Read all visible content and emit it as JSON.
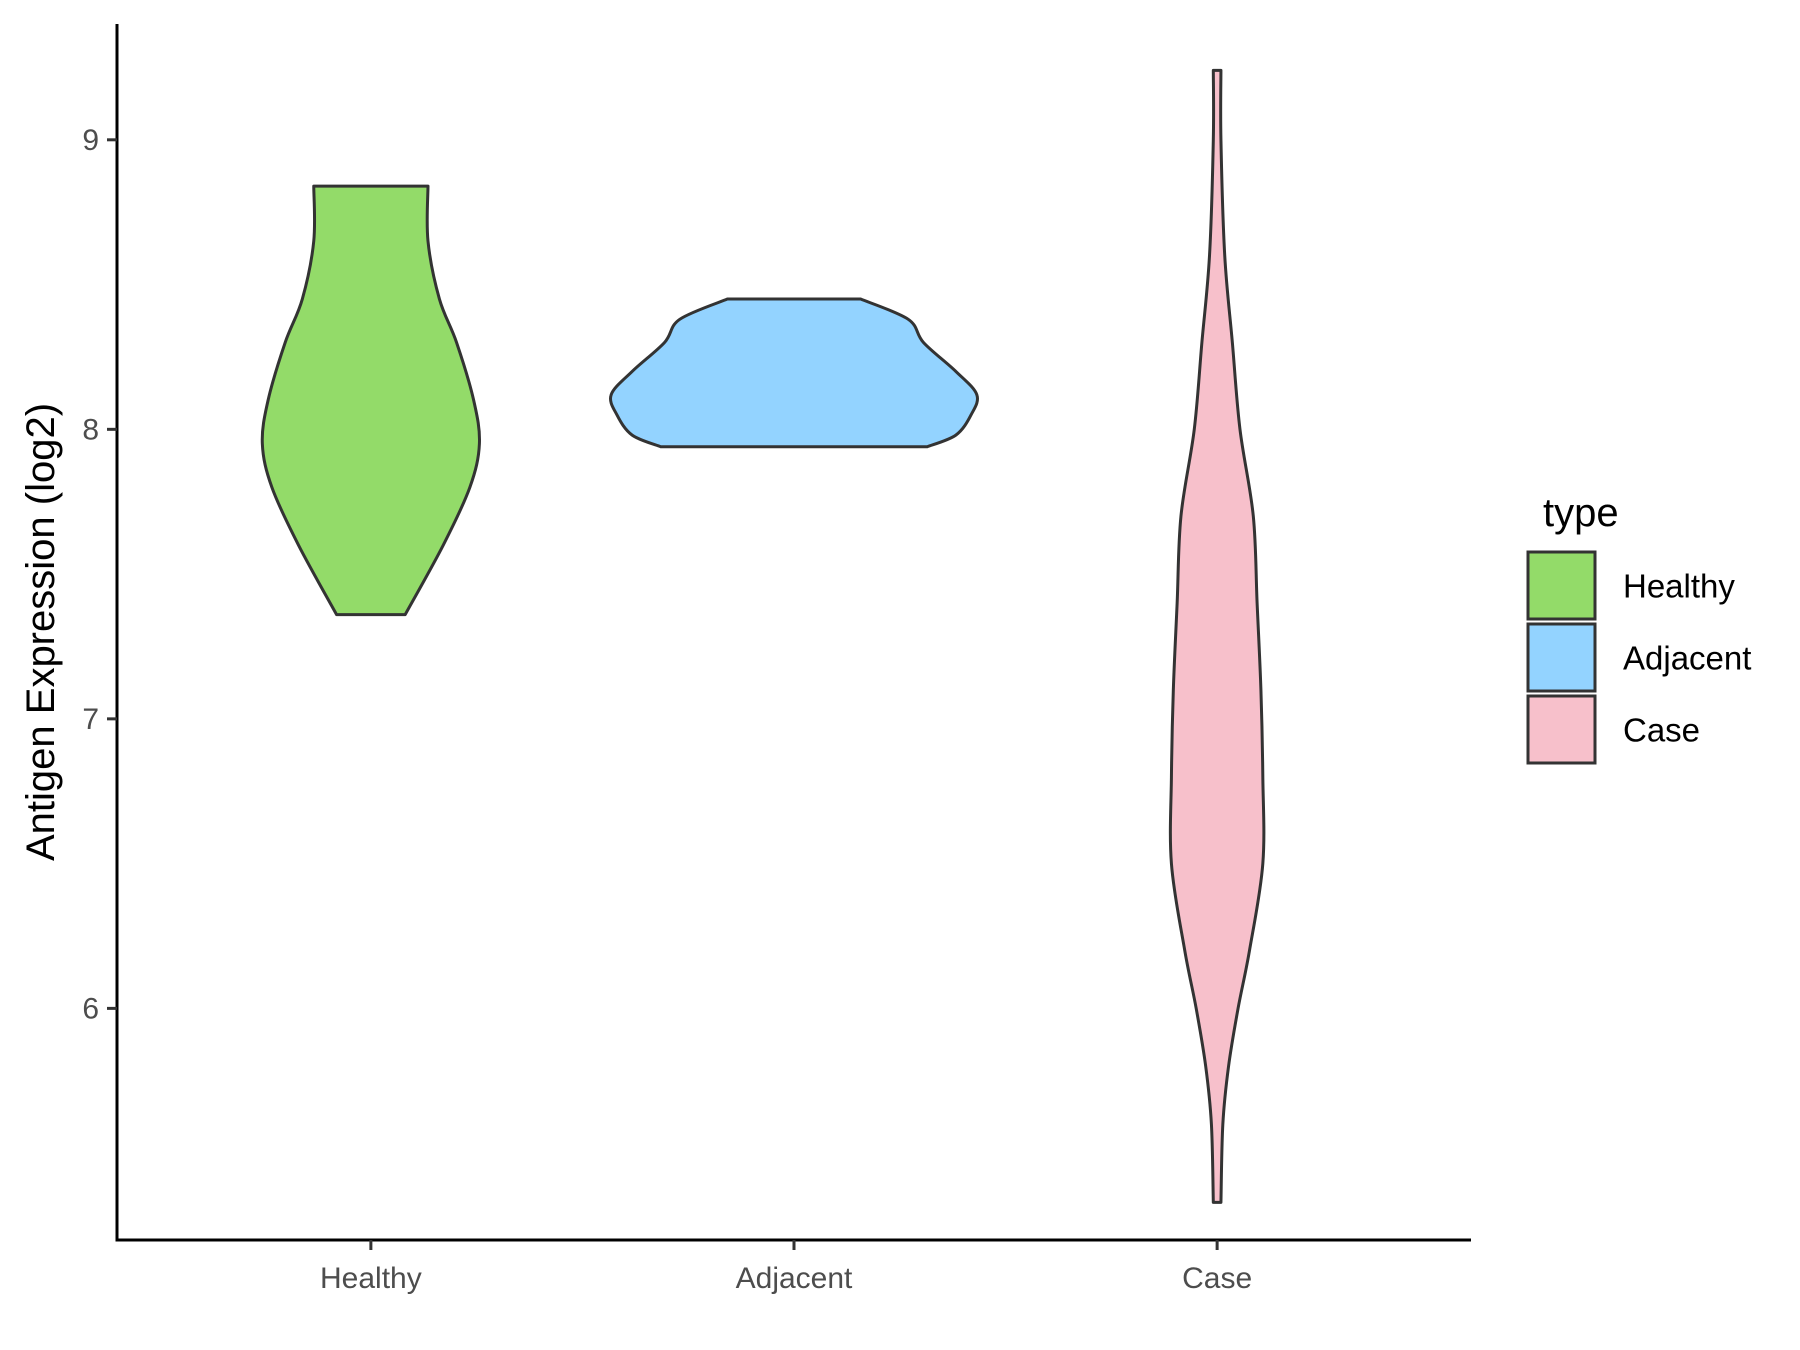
{
  "chart_data": {
    "type": "violin",
    "title": "",
    "xlabel": "",
    "ylabel": "Antigen Expression (log2)",
    "categories": [
      "Healthy",
      "Adjacent",
      "Case"
    ],
    "ylim": [
      5.2,
      9.4
    ],
    "yticks": [
      6,
      7,
      8,
      9
    ],
    "grid": false,
    "legend": {
      "title": "type",
      "position": "right",
      "entries": [
        "Healthy",
        "Adjacent",
        "Case"
      ]
    },
    "series": [
      {
        "name": "Healthy",
        "color": "#93DB69",
        "min": 7.36,
        "max": 8.84,
        "profile": [
          [
            7.36,
            0.18
          ],
          [
            7.6,
            0.38
          ],
          [
            7.8,
            0.52
          ],
          [
            7.95,
            0.57
          ],
          [
            8.1,
            0.54
          ],
          [
            8.3,
            0.45
          ],
          [
            8.45,
            0.36
          ],
          [
            8.65,
            0.3
          ],
          [
            8.84,
            0.3
          ]
        ]
      },
      {
        "name": "Adjacent",
        "color": "#93D3FF",
        "min": 7.94,
        "max": 8.45,
        "profile": [
          [
            7.94,
            0.7
          ],
          [
            7.98,
            0.85
          ],
          [
            8.05,
            0.93
          ],
          [
            8.12,
            0.96
          ],
          [
            8.2,
            0.85
          ],
          [
            8.3,
            0.68
          ],
          [
            8.38,
            0.6
          ],
          [
            8.45,
            0.35
          ]
        ]
      },
      {
        "name": "Case",
        "color": "#F7C0CB",
        "min": 5.33,
        "max": 9.24,
        "profile": [
          [
            5.33,
            0.02
          ],
          [
            5.6,
            0.03
          ],
          [
            5.8,
            0.06
          ],
          [
            6.0,
            0.11
          ],
          [
            6.2,
            0.17
          ],
          [
            6.5,
            0.24
          ],
          [
            6.8,
            0.24
          ],
          [
            7.1,
            0.23
          ],
          [
            7.4,
            0.21
          ],
          [
            7.7,
            0.19
          ],
          [
            8.0,
            0.12
          ],
          [
            8.3,
            0.08
          ],
          [
            8.6,
            0.04
          ],
          [
            9.0,
            0.02
          ],
          [
            9.24,
            0.02
          ]
        ]
      }
    ]
  }
}
